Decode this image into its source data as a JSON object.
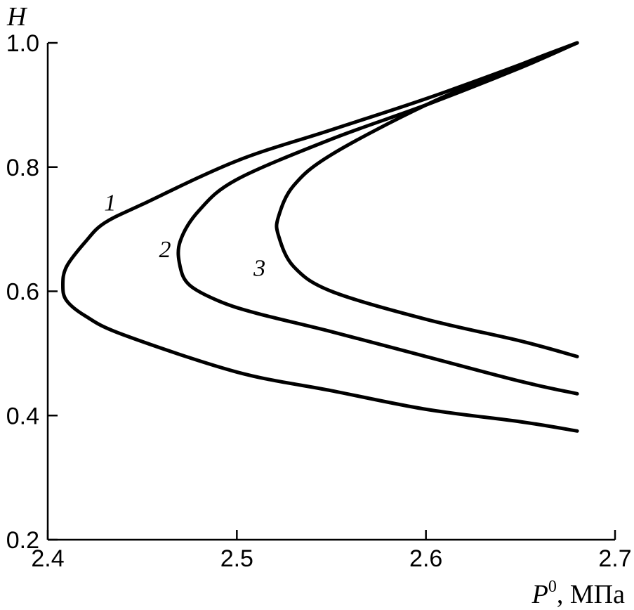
{
  "chart_data": {
    "type": "line",
    "xlabel_symbol": "P",
    "xlabel_sup": "0",
    "xlabel_unit": ", МПа",
    "ylabel": "H",
    "xlim": [
      2.4,
      2.7
    ],
    "ylim": [
      0.2,
      1.0
    ],
    "x_ticks": [
      2.4,
      2.5,
      2.6,
      2.7
    ],
    "y_ticks": [
      0.2,
      0.4,
      0.6,
      0.8,
      1.0
    ],
    "x_tick_labels": [
      "2.4",
      "2.5",
      "2.6",
      "2.7"
    ],
    "y_tick_labels": [
      "0.2",
      "0.4",
      "0.6",
      "0.8",
      "1.0"
    ],
    "grid": false,
    "series": [
      {
        "name": "1",
        "points": [
          [
            2.68,
            1.0
          ],
          [
            2.65,
            0.965
          ],
          [
            2.6,
            0.91
          ],
          [
            2.55,
            0.86
          ],
          [
            2.5,
            0.81
          ],
          [
            2.45,
            0.74
          ],
          [
            2.43,
            0.71
          ],
          [
            2.42,
            0.68
          ],
          [
            2.41,
            0.64
          ],
          [
            2.408,
            0.61
          ],
          [
            2.41,
            0.585
          ],
          [
            2.42,
            0.56
          ],
          [
            2.44,
            0.53
          ],
          [
            2.5,
            0.47
          ],
          [
            2.55,
            0.44
          ],
          [
            2.6,
            0.41
          ],
          [
            2.65,
            0.39
          ],
          [
            2.68,
            0.375
          ]
        ]
      },
      {
        "name": "2",
        "points": [
          [
            2.68,
            1.0
          ],
          [
            2.65,
            0.96
          ],
          [
            2.6,
            0.9
          ],
          [
            2.55,
            0.845
          ],
          [
            2.5,
            0.78
          ],
          [
            2.48,
            0.73
          ],
          [
            2.47,
            0.68
          ],
          [
            2.47,
            0.64
          ],
          [
            2.475,
            0.61
          ],
          [
            2.49,
            0.585
          ],
          [
            2.51,
            0.565
          ],
          [
            2.55,
            0.535
          ],
          [
            2.6,
            0.495
          ],
          [
            2.65,
            0.455
          ],
          [
            2.68,
            0.435
          ]
        ]
      },
      {
        "name": "3",
        "points": [
          [
            2.68,
            1.0
          ],
          [
            2.65,
            0.965
          ],
          [
            2.6,
            0.9
          ],
          [
            2.55,
            0.82
          ],
          [
            2.53,
            0.77
          ],
          [
            2.522,
            0.72
          ],
          [
            2.522,
            0.69
          ],
          [
            2.53,
            0.64
          ],
          [
            2.55,
            0.6
          ],
          [
            2.6,
            0.555
          ],
          [
            2.65,
            0.52
          ],
          [
            2.68,
            0.495
          ]
        ]
      }
    ]
  }
}
